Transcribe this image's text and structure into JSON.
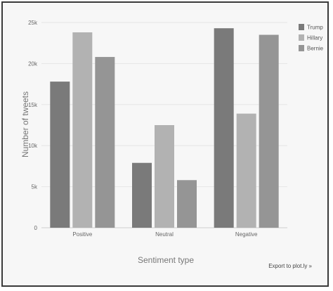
{
  "chart_data": {
    "type": "bar",
    "categories": [
      "Positive",
      "Neutral",
      "Negative"
    ],
    "series": [
      {
        "name": "Trump",
        "values": [
          17800,
          7900,
          24300
        ],
        "color": "#7a7a7a"
      },
      {
        "name": "Hillary",
        "values": [
          23800,
          12500,
          13900
        ],
        "color": "#b2b2b2"
      },
      {
        "name": "Bernie",
        "values": [
          20800,
          5800,
          23500
        ],
        "color": "#959595"
      }
    ],
    "xlabel": "Sentiment type",
    "ylabel": "Number of tweets",
    "ylim": [
      0,
      25000
    ],
    "yticks": [
      0,
      5000,
      10000,
      15000,
      20000,
      25000
    ],
    "ytick_labels": [
      "0",
      "5k",
      "10k",
      "15k",
      "20k",
      "25k"
    ],
    "grid": true,
    "legend_position": "top-right"
  },
  "export_link": "Export to plot.ly »"
}
